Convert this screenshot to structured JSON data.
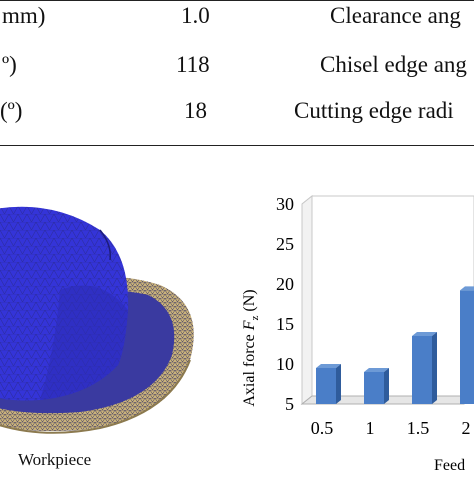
{
  "table": {
    "rows": [
      {
        "param": "mm)",
        "value": "1.0",
        "param2": "Clearance ang"
      },
      {
        "param": "º)",
        "value": "118",
        "param2": "Chisel edge ang"
      },
      {
        "param": "(º)",
        "value": "18",
        "param2": "Cutting edge radi"
      }
    ]
  },
  "figure_left": {
    "caption": "Workpiece",
    "colors": {
      "drill": "#3434d8",
      "workpiece": "#c9b27a",
      "mesh": "#2a2a8c"
    }
  },
  "chart_data": {
    "type": "bar",
    "categories": [
      "0.5",
      "1",
      "1.5",
      "2"
    ],
    "values": [
      9.5,
      9.0,
      13.5,
      19.2
    ],
    "ylabel_main": "Axial force ",
    "ylabel_var": "F",
    "ylabel_sub": "z",
    "ylabel_unit": " (N)",
    "xlabel": "Feed",
    "yticks": [
      "5",
      "10",
      "15",
      "20",
      "25",
      "30"
    ],
    "ylim": [
      5,
      30
    ],
    "bar_color": "#4a7ec8",
    "grid": true
  }
}
